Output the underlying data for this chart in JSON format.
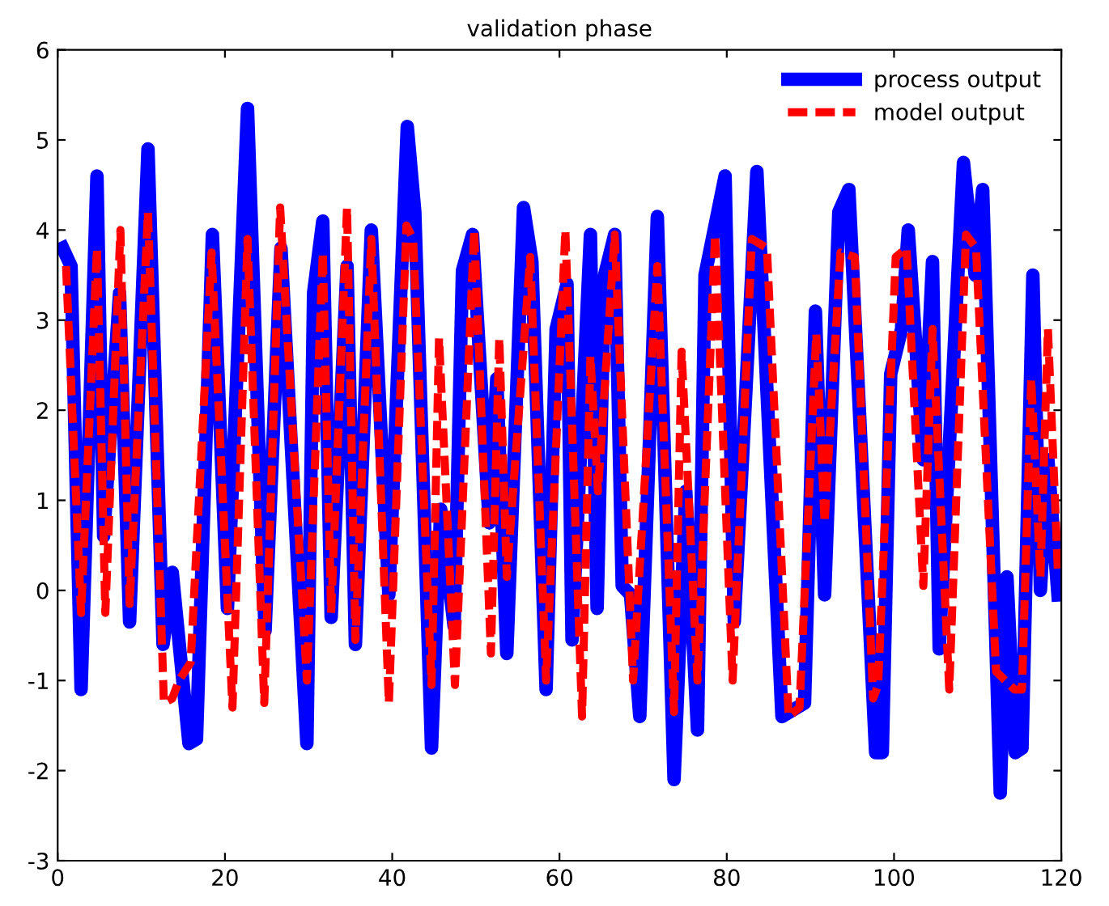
{
  "chart_data": {
    "type": "line",
    "title": "validation phase",
    "xlim": [
      0,
      120
    ],
    "xticks": [
      0,
      20,
      40,
      60,
      80,
      100,
      120
    ],
    "ylim": [
      -3,
      6
    ],
    "yticks": [
      -3,
      -2,
      -1,
      0,
      1,
      2,
      3,
      4,
      5,
      6
    ],
    "grid": false,
    "legend": "top right",
    "marker": "none",
    "series": [
      {
        "name": "process output",
        "color": "#0000ff",
        "line_style": "solid",
        "x": [
          0.6,
          1.6,
          2.8,
          4.7,
          5.5,
          7.4,
          8.6,
          10.8,
          12.6,
          13.7,
          15.7,
          16.6,
          18.5,
          20.3,
          22.7,
          24.8,
          26.7,
          29.8,
          30.6,
          31.7,
          32.7,
          34.6,
          35.6,
          37.5,
          39.6,
          41.8,
          42.7,
          44.7,
          45.8,
          47.4,
          48.4,
          49.6,
          51.6,
          52.5,
          53.7,
          55.7,
          56.7,
          58.4,
          59.6,
          60.9,
          61.5,
          63.7,
          64.5,
          65.4,
          66.6,
          67.5,
          68.5,
          69.6,
          71.7,
          73.7,
          75.1,
          76.5,
          77.4,
          79.8,
          80.9,
          83.6,
          86.6,
          89.3,
          90.6,
          91.7,
          93.4,
          94.6,
          97.8,
          98.6,
          99.6,
          100.9,
          101.7,
          103.5,
          104.6,
          105.4,
          108.3,
          109.7,
          110.6,
          112.7,
          113.5,
          114.5,
          115.3,
          116.6,
          117.5,
          118.4,
          119.6
        ],
        "values": [
          3.8,
          3.6,
          -1.1,
          4.6,
          0.6,
          3.3,
          -0.35,
          4.9,
          -0.6,
          0.2,
          -1.7,
          -1.65,
          3.95,
          -0.2,
          5.35,
          -0.45,
          3.8,
          -1.7,
          3.3,
          4.1,
          -0.3,
          3.6,
          -0.6,
          4.0,
          -0.05,
          5.15,
          4.2,
          -1.75,
          0.9,
          -0.4,
          3.55,
          3.95,
          0.75,
          2.35,
          -0.7,
          4.25,
          3.65,
          -1.1,
          2.9,
          3.4,
          -0.55,
          3.95,
          -0.2,
          3.5,
          3.95,
          0.05,
          -0.05,
          -1.4,
          4.15,
          -2.1,
          1.1,
          -1.55,
          3.5,
          4.6,
          -0.35,
          4.65,
          -1.4,
          -1.25,
          3.1,
          -0.05,
          4.2,
          4.45,
          -1.8,
          -1.8,
          2.4,
          2.9,
          4.0,
          1.45,
          3.65,
          -0.65,
          4.75,
          3.5,
          4.45,
          -2.25,
          0.15,
          -1.8,
          -1.75,
          3.5,
          0.0,
          1.45,
          -0.05
        ]
      },
      {
        "name": "model output",
        "color": "#ff0000",
        "line_style": "dashed",
        "x": [
          1.0,
          2.8,
          4.7,
          5.7,
          7.5,
          8.6,
          10.8,
          12.7,
          13.7,
          14.5,
          15.9,
          18.4,
          20.9,
          22.7,
          24.7,
          26.6,
          29.8,
          31.7,
          32.7,
          34.6,
          35.6,
          37.5,
          39.6,
          41.7,
          42.5,
          44.7,
          45.6,
          47.5,
          49.8,
          51.8,
          52.8,
          53.7,
          56.5,
          58.4,
          60.7,
          62.7,
          63.7,
          64.6,
          66.6,
          68.8,
          71.7,
          73.7,
          74.6,
          76.5,
          78.6,
          80.7,
          83.0,
          84.8,
          87.4,
          88.7,
          90.7,
          91.7,
          93.6,
          95.3,
          97.5,
          98.1,
          100.2,
          101.5,
          103.5,
          104.6,
          106.6,
          108.6,
          109.8,
          112.2,
          114.4,
          115.3,
          116.4,
          117.5,
          118.4,
          119.6
        ],
        "values": [
          3.6,
          -0.25,
          3.8,
          -0.25,
          4.0,
          -0.15,
          4.2,
          -1.25,
          -1.2,
          -1.0,
          -0.8,
          3.75,
          -1.3,
          3.9,
          -1.25,
          4.25,
          -1.0,
          3.75,
          -0.25,
          4.25,
          -0.55,
          3.9,
          -1.25,
          4.05,
          3.9,
          -1.05,
          2.8,
          -1.05,
          4.0,
          -0.7,
          2.8,
          0.15,
          3.7,
          -1.0,
          4.0,
          -1.4,
          2.6,
          1.1,
          3.95,
          -1.0,
          3.6,
          -1.35,
          2.65,
          -1.0,
          3.95,
          -1.0,
          3.9,
          3.8,
          -1.4,
          -1.3,
          2.85,
          0.75,
          3.75,
          3.7,
          -1.2,
          -1.05,
          3.7,
          3.8,
          0.05,
          2.9,
          -1.1,
          3.95,
          3.8,
          -0.9,
          -1.1,
          -1.1,
          2.35,
          0.15,
          2.9,
          0.2
        ]
      }
    ]
  }
}
